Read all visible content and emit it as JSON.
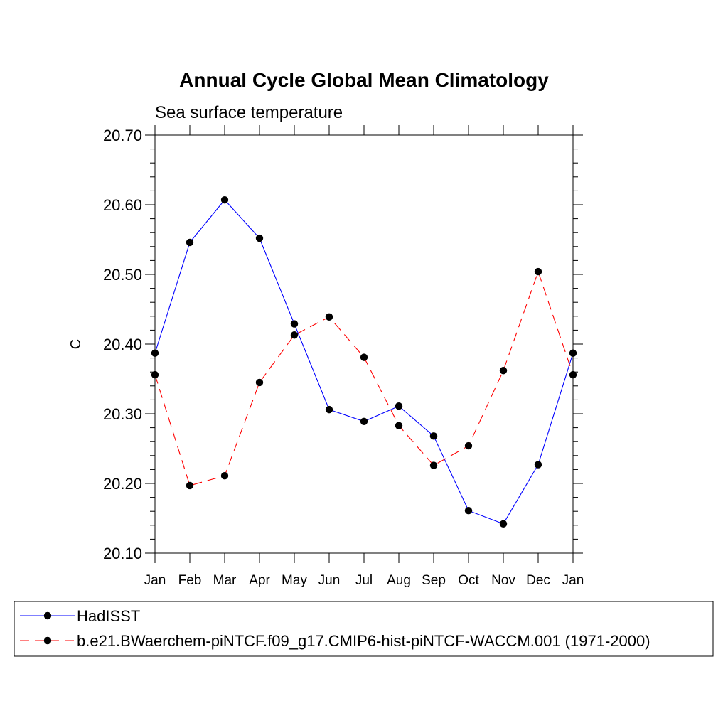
{
  "chart_data": {
    "type": "line",
    "title": "Annual Cycle Global Mean Climatology",
    "subtitle": "Sea surface temperature",
    "ylabel": "C",
    "xlabel": "",
    "ylim": [
      20.1,
      20.7
    ],
    "ytick_values": [
      20.1,
      20.2,
      20.3,
      20.4,
      20.5,
      20.6,
      20.7
    ],
    "ytick_labels": [
      "20.10",
      "20.20",
      "20.30",
      "20.40",
      "20.50",
      "20.60",
      "20.70"
    ],
    "categories": [
      "Jan",
      "Feb",
      "Mar",
      "Apr",
      "May",
      "Jun",
      "Jul",
      "Aug",
      "Sep",
      "Oct",
      "Nov",
      "Dec",
      "Jan"
    ],
    "series": [
      {
        "name": "HadISST",
        "color": "#0000ff",
        "dash": "solid",
        "values": [
          20.387,
          20.546,
          20.607,
          20.552,
          20.429,
          20.306,
          20.289,
          20.311,
          20.268,
          20.161,
          20.142,
          20.227,
          20.387
        ]
      },
      {
        "name": "b.e21.BWaerchem-piNTCF.f09_g17.CMIP6-hist-piNTCF-WACCM.001 (1971-2000)",
        "color": "#ff0000",
        "dash": "dashed",
        "values": [
          20.356,
          20.197,
          20.211,
          20.345,
          20.413,
          20.439,
          20.381,
          20.283,
          20.226,
          20.254,
          20.362,
          20.504,
          20.356
        ]
      }
    ],
    "legend": "bottom"
  }
}
